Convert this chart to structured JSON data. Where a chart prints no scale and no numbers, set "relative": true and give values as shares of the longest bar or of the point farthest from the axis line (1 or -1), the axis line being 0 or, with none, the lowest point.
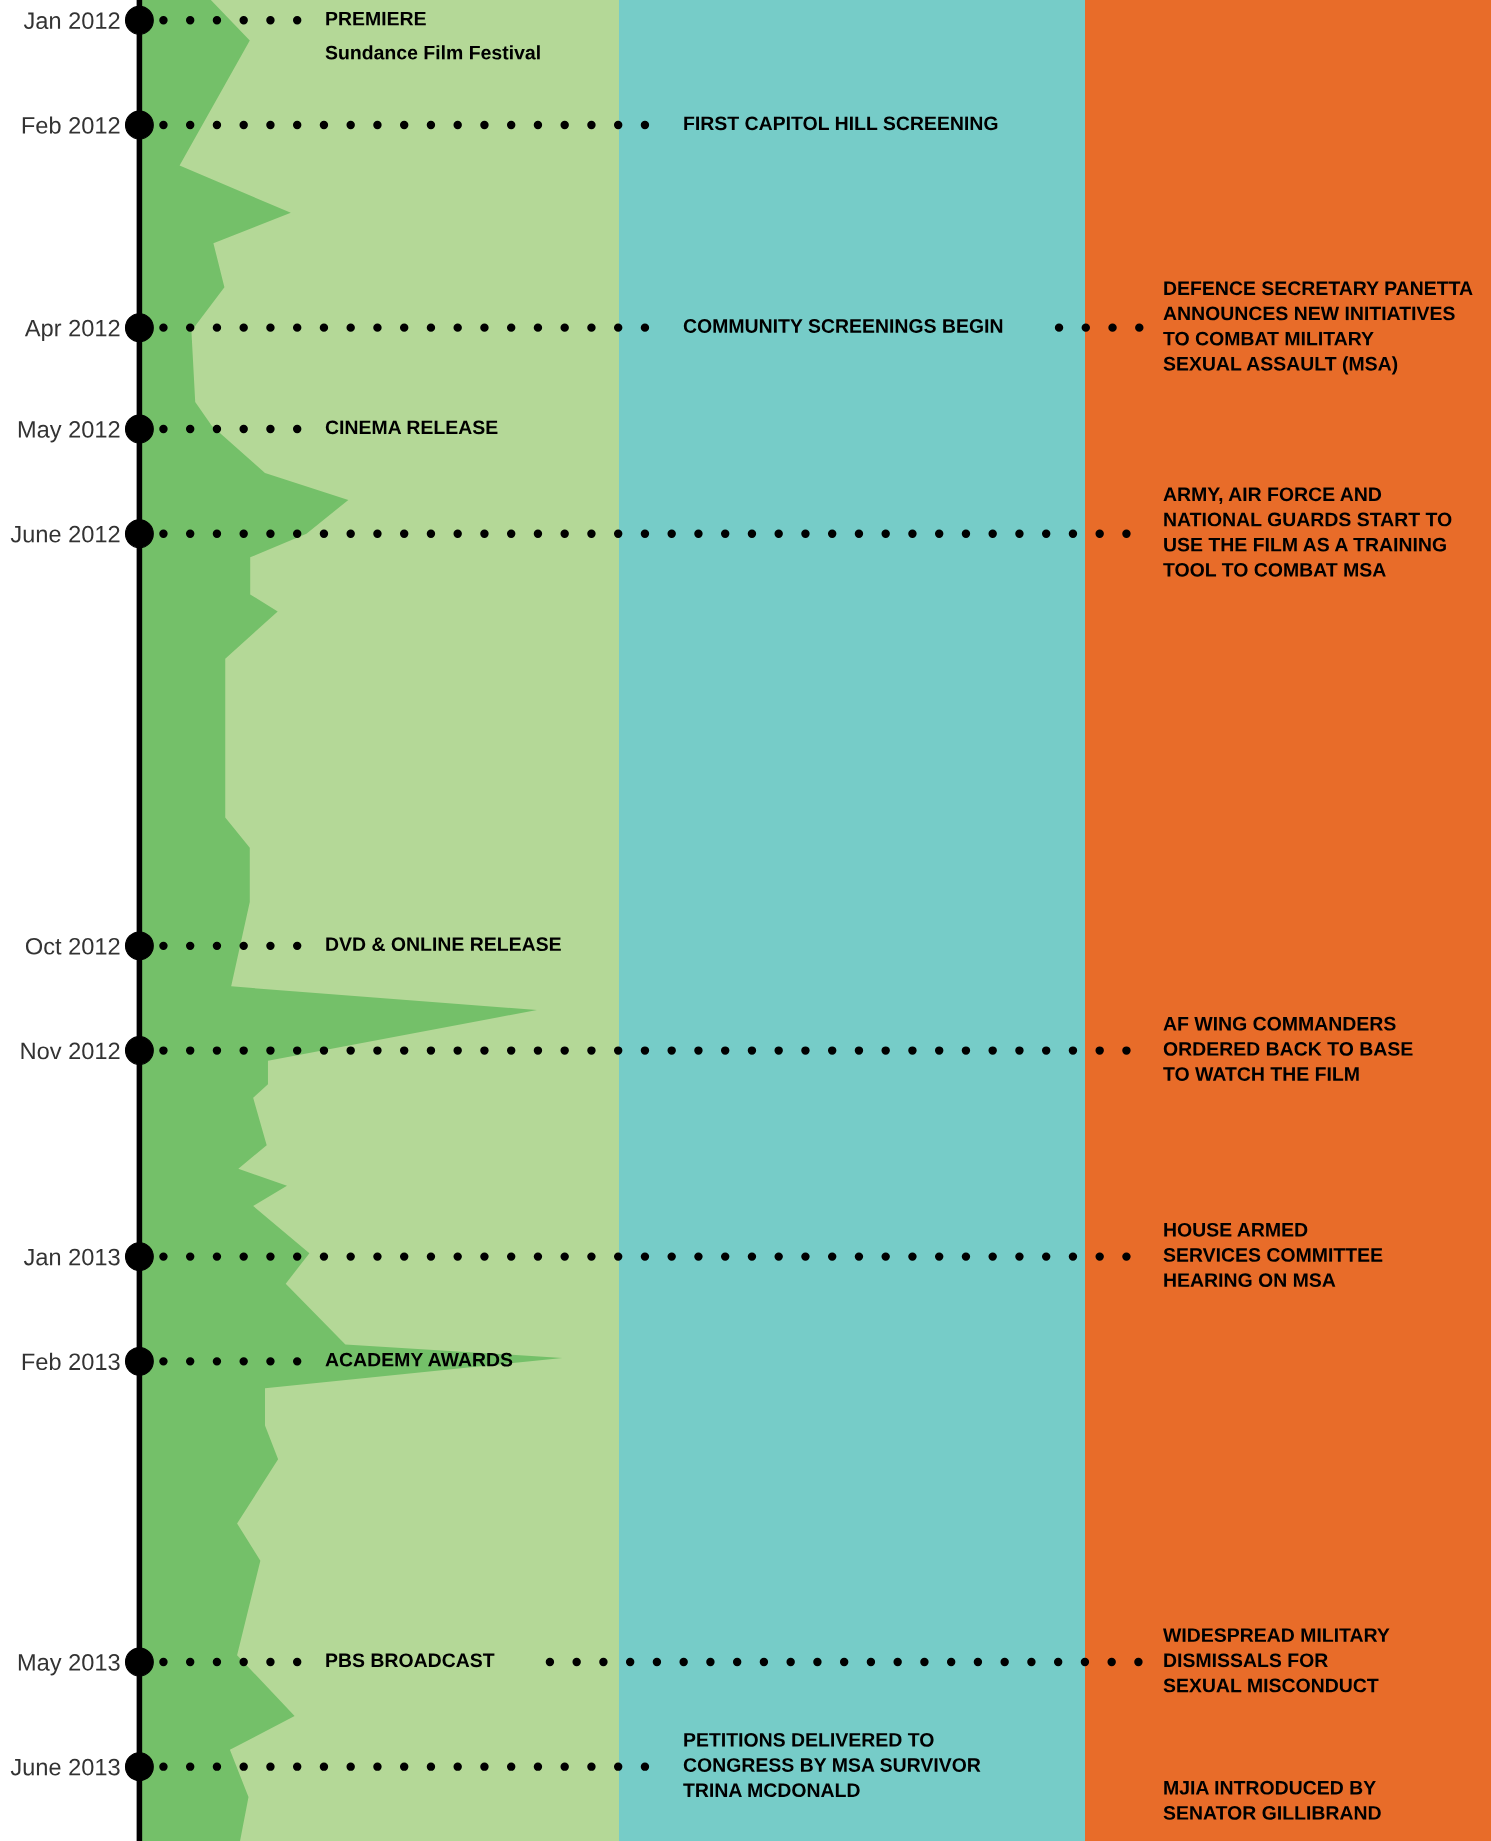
{
  "chart_data": {
    "type": "area",
    "orientation": "horizontal",
    "relative": true,
    "color": "#74c069",
    "x": [
      "2011-12-26",
      "2012-01-07",
      "2012-02-13",
      "2012-02-27",
      "2012-03-07",
      "2012-03-20",
      "2012-04-02",
      "2012-04-23",
      "2012-04-30",
      "2012-05-14",
      "2012-05-22",
      "2012-06-01",
      "2012-06-08",
      "2012-06-19",
      "2012-06-24",
      "2012-07-08",
      "2012-08-24",
      "2012-09-02",
      "2012-09-18",
      "2012-10-13",
      "2012-10-20",
      "2012-11-04",
      "2012-11-11",
      "2012-11-15",
      "2012-11-29",
      "2012-12-06",
      "2012-12-11",
      "2012-12-17",
      "2012-12-31",
      "2013-01-09",
      "2013-01-27",
      "2013-01-31",
      "2013-02-09",
      "2013-02-20",
      "2013-03-02",
      "2013-03-21",
      "2013-04-01",
      "2013-04-29",
      "2013-05-17",
      "2013-05-27",
      "2013-06-10",
      "2013-06-23"
    ],
    "values": [
      0.169,
      0.261,
      0.095,
      0.358,
      0.175,
      0.201,
      0.123,
      0.132,
      0.171,
      0.297,
      0.494,
      0.395,
      0.262,
      0.262,
      0.327,
      0.203,
      0.203,
      0.261,
      0.261,
      0.217,
      0.94,
      0.304,
      0.304,
      0.269,
      0.301,
      0.234,
      0.349,
      0.269,
      0.402,
      0.346,
      0.487,
      1.0,
      0.297,
      0.297,
      0.328,
      0.231,
      0.286,
      0.231,
      0.367,
      0.214,
      0.258,
      0.238
    ],
    "ylim": [
      "2013-06-23",
      "2011-12-26"
    ],
    "yticks": [
      {
        "value": "2012-01-01",
        "label": "Jan 2012"
      },
      {
        "value": "2012-02-01",
        "label": "Feb 2012"
      },
      {
        "value": "2012-04-01",
        "label": "Apr 2012"
      },
      {
        "value": "2012-05-01",
        "label": "May 2012"
      },
      {
        "value": "2012-06-01",
        "label": "June 2012"
      },
      {
        "value": "2012-10-01",
        "label": "Oct 2012"
      },
      {
        "value": "2012-11-01",
        "label": "Nov 2012"
      },
      {
        "value": "2013-01-01",
        "label": "Jan 2013"
      },
      {
        "value": "2013-02-01",
        "label": "Feb 2013"
      },
      {
        "value": "2013-05-01",
        "label": "May 2013"
      },
      {
        "value": "2013-06-01",
        "label": "June 2013"
      }
    ],
    "tick_labels": "y",
    "grid": false,
    "ref_lines": [
      {
        "axis": "y",
        "value": "2012-01-01",
        "label": "PREMIERE",
        "color": "#000000",
        "line_style": "dotted"
      },
      {
        "axis": "y",
        "value": "2012-02-01",
        "label": "FIRST CAPITOL HILL SCREENING",
        "color": "#000000",
        "line_style": "dotted"
      },
      {
        "axis": "y",
        "value": "2012-04-01",
        "label": "COMMUNITY SCREENINGS BEGIN",
        "color": "#000000",
        "line_style": "dotted"
      },
      {
        "axis": "y",
        "value": "2012-04-01",
        "label": "DEFENCE SECRETARY PANETTA\nANNOUNCES NEW INITIATIVES\nTO COMBAT MILITARY\nSEXUAL ASSAULT (MSA)",
        "color": "#000000",
        "line_style": "dotted"
      },
      {
        "axis": "y",
        "value": "2012-05-01",
        "label": "CINEMA RELEASE",
        "color": "#000000",
        "line_style": "dotted"
      },
      {
        "axis": "y",
        "value": "2012-06-01",
        "label": "ARMY, AIR FORCE AND\nNATIONAL GUARDS START TO\nUSE THE FILM AS A TRAINING\nTOOL TO COMBAT MSA",
        "color": "#000000",
        "line_style": "dotted"
      },
      {
        "axis": "y",
        "value": "2012-10-01",
        "label": "DVD & ONLINE RELEASE",
        "color": "#000000",
        "line_style": "dotted"
      },
      {
        "axis": "y",
        "value": "2012-11-01",
        "label": "AF WING COMMANDERS\nORDERED BACK TO BASE\nTO WATCH THE FILM",
        "color": "#000000",
        "line_style": "dotted"
      },
      {
        "axis": "y",
        "value": "2013-01-01",
        "label": "HOUSE ARMED\nSERVICES COMMITTEE\nHEARING ON MSA",
        "color": "#000000",
        "line_style": "dotted"
      },
      {
        "axis": "y",
        "value": "2013-02-01",
        "label": "ACADEMY AWARDS",
        "color": "#000000",
        "line_style": "dotted"
      },
      {
        "axis": "y",
        "value": "2013-05-01",
        "label": "PBS BROADCAST",
        "color": "#000000",
        "line_style": "dotted"
      },
      {
        "axis": "y",
        "value": "2013-05-01",
        "label": "WIDESPREAD MILITARY\nDISMISSALS FOR\nSEXUAL MISCONDUCT",
        "color": "#000000",
        "line_style": "dotted"
      },
      {
        "axis": "y",
        "value": "2013-06-01",
        "label": "PETITIONS DELIVERED TO\nCONGRESS BY MSA SURVIVOR\nTRINA MCDONALD",
        "color": "#000000",
        "line_style": "dotted"
      }
    ],
    "annotations": [
      "Sundance Film Festival",
      "MJIA INTRODUCED BY\nSENATOR GILLIBRAND"
    ]
  }
}
